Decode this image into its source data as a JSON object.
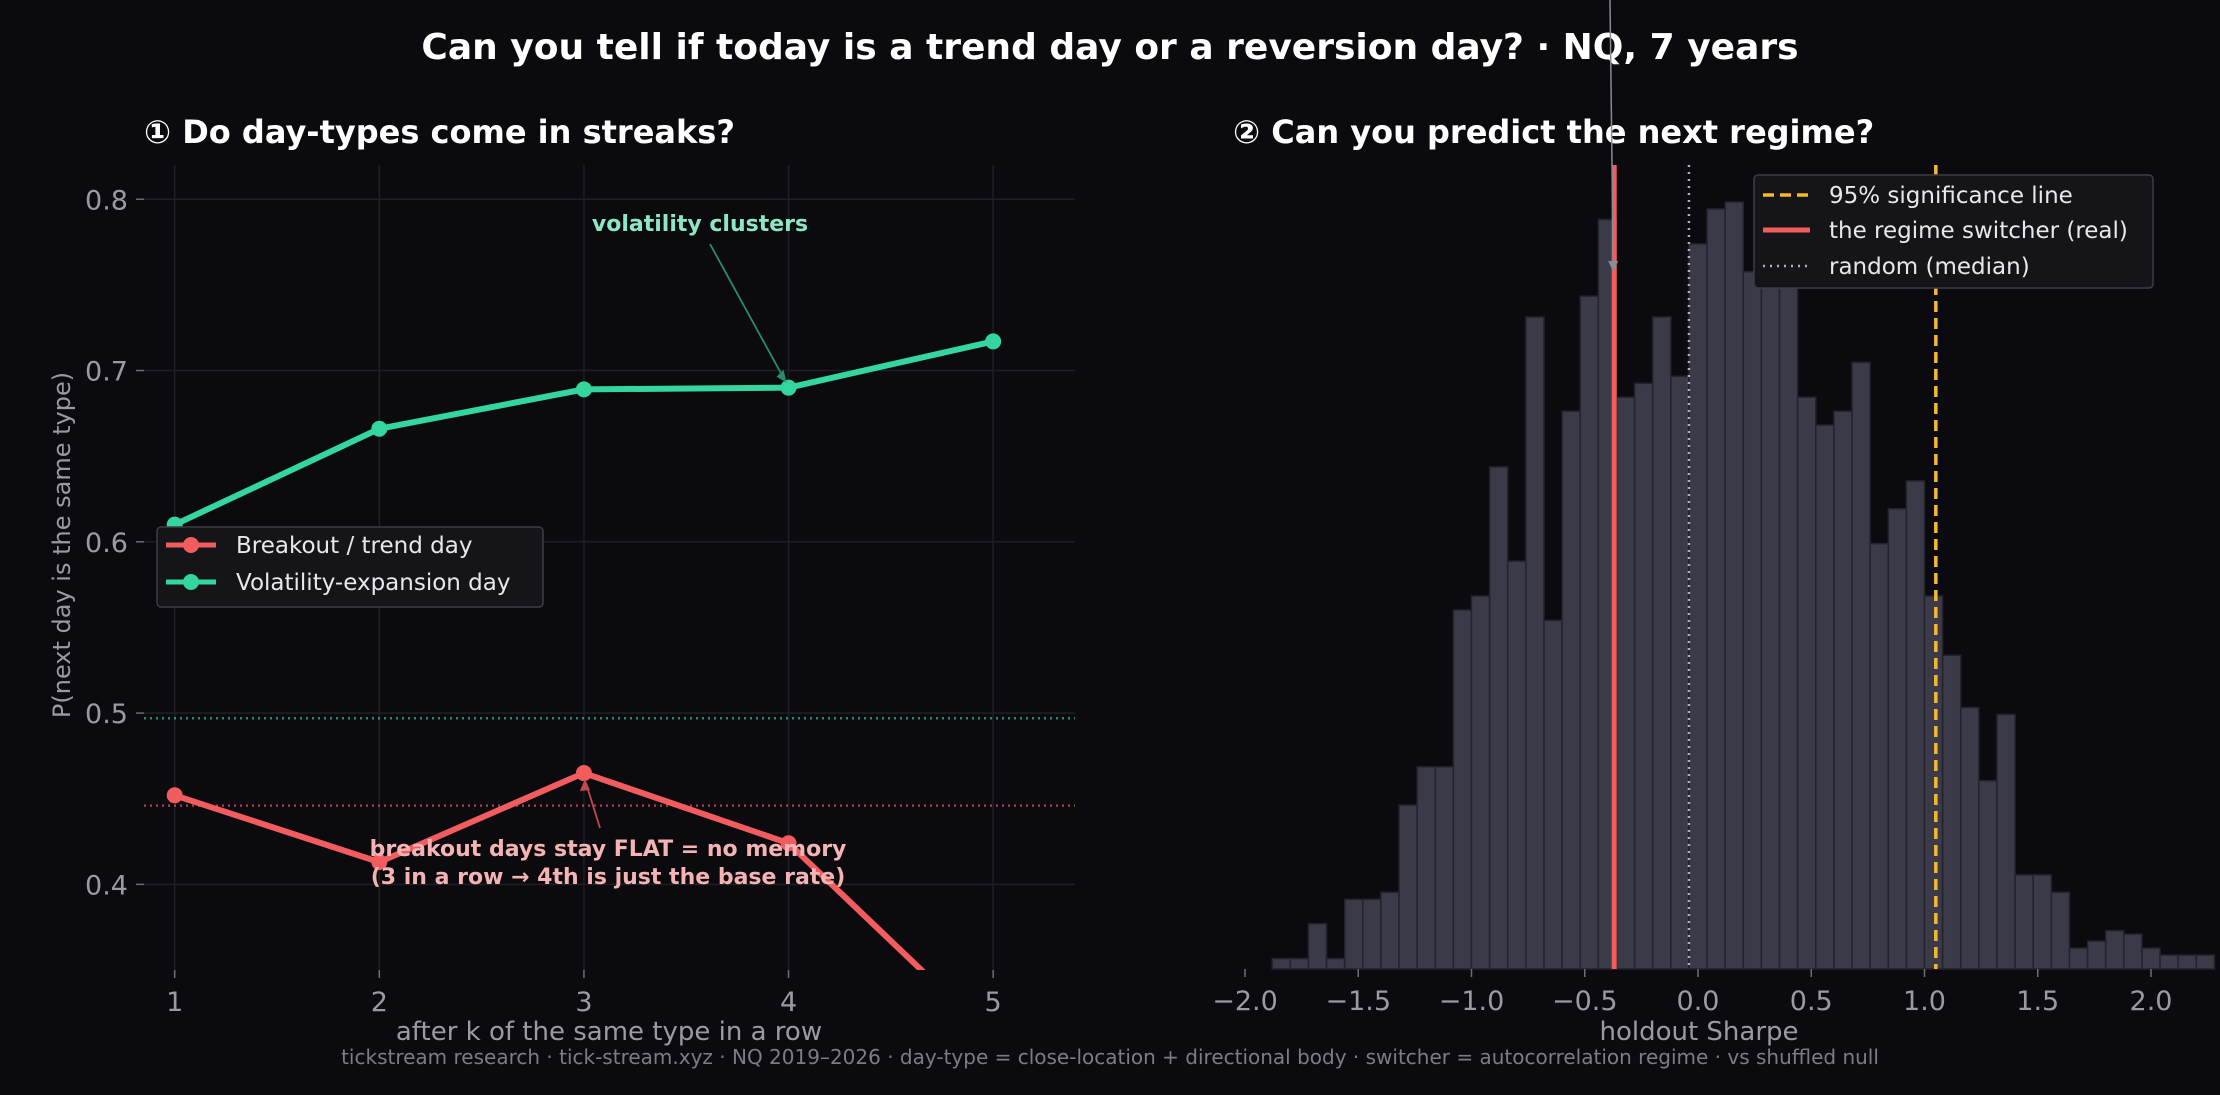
{
  "title": "Can you tell if today is a trend day or a reversion day?  ·  NQ, 7 years",
  "footer": "tickstream research · tick-stream.xyz · NQ 2019–2026 · day-type = close-location + directional body · switcher = autocorrelation regime · vs shuffled null",
  "colors": {
    "background": "#0b0b0f",
    "breakout": "#f25c5f",
    "volatility": "#33d69f",
    "histogram": "#3a3a48",
    "significance": "#f5b82e",
    "random": "#b0b0b8",
    "text": "#ffffff",
    "muted": "#9a9aa2"
  },
  "chart_data": [
    {
      "type": "line",
      "title": "① Do day-types come in streaks?",
      "xlabel": "after k of the same type in a row",
      "ylabel": "P(next day is the same type)",
      "xlim": [
        0.85,
        5.4
      ],
      "ylim": [
        0.35,
        0.82
      ],
      "xticks": [
        "1",
        "2",
        "3",
        "4",
        "5"
      ],
      "yticks": [
        "0.4",
        "0.5",
        "0.6",
        "0.7",
        "0.8"
      ],
      "grid": true,
      "legend": "center-left",
      "x": [
        1,
        2,
        3,
        4,
        5
      ],
      "series": [
        {
          "name": "Breakout / trend day",
          "values": [
            0.452,
            0.413,
            0.465,
            0.424,
            0.31
          ],
          "base_rate": 0.446
        },
        {
          "name": "Volatility-expansion day",
          "values": [
            0.61,
            0.666,
            0.689,
            0.69,
            0.717
          ],
          "base_rate": 0.497
        }
      ],
      "annotations": [
        {
          "text": "volatility clusters",
          "points_to": [
            4,
            0.69
          ]
        },
        {
          "text": "breakout days stay FLAT = no memory",
          "text2": "(3 in a row → 4th is just the base rate)",
          "points_to": [
            3,
            0.465
          ]
        }
      ]
    },
    {
      "type": "bar",
      "title": "② Can you predict the next regime?",
      "xlabel": "holdout Sharpe",
      "xlim": [
        -2.0,
        2.0
      ],
      "xticks": [
        "−2.0",
        "−1.5",
        "−1.0",
        "−0.5",
        "0.0",
        "0.5",
        "1.0",
        "1.5",
        "2.0"
      ],
      "legend": "top-right",
      "bin_width": 0.08,
      "bin_start": -1.88,
      "counts": [
        3,
        3,
        13,
        3,
        20,
        20,
        22,
        47,
        58,
        58,
        103,
        107,
        144,
        117,
        187,
        100,
        160,
        193,
        215,
        164,
        168,
        187,
        170,
        208,
        218,
        220,
        200,
        196,
        200,
        164,
        156,
        160,
        174,
        122,
        132,
        140,
        107,
        90,
        75,
        54,
        73,
        27,
        27,
        22,
        6,
        8,
        11,
        10,
        6,
        4,
        4,
        4,
        0
      ],
      "lines": [
        {
          "name": "95% significance line",
          "x": 1.05
        },
        {
          "name": "the regime switcher (real)",
          "x": -0.37
        },
        {
          "name": "random (median)",
          "x": -0.04
        }
      ]
    }
  ]
}
